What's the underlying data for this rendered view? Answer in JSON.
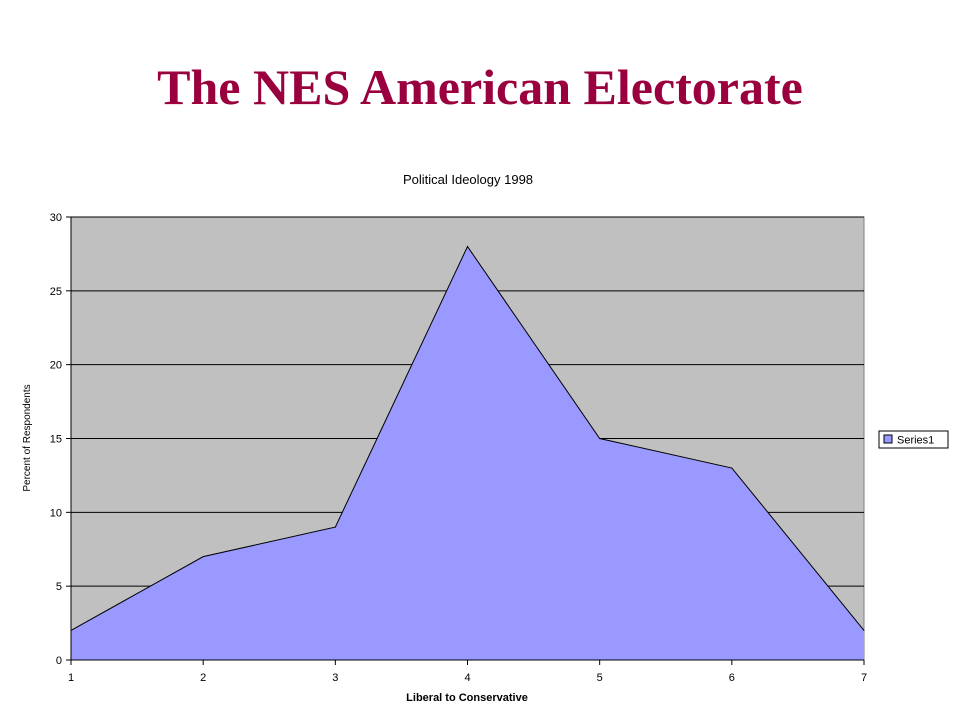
{
  "slide": {
    "title": "The NES American Electorate"
  },
  "chart_data": {
    "type": "area",
    "title": "Political Ideology 1998",
    "xlabel": "Liberal to Conservative",
    "ylabel": "Percent of Respondents",
    "x": [
      1,
      2,
      3,
      4,
      5,
      6,
      7
    ],
    "x_tick_labels": [
      "1",
      "2",
      "3",
      "4",
      "5",
      "6",
      "7"
    ],
    "y_ticks": [
      0,
      5,
      10,
      15,
      20,
      25,
      30
    ],
    "y_tick_labels": [
      "0",
      "5",
      "10",
      "15",
      "20",
      "25",
      "30"
    ],
    "ylim": [
      0,
      30
    ],
    "xlim": [
      1,
      7
    ],
    "grid": true,
    "legend_position": "right",
    "series": [
      {
        "name": "Series1",
        "values": [
          2,
          7,
          9,
          28,
          15,
          13,
          2
        ],
        "color": "#9999ff"
      }
    ],
    "plot_background": "#c0c0c0"
  }
}
